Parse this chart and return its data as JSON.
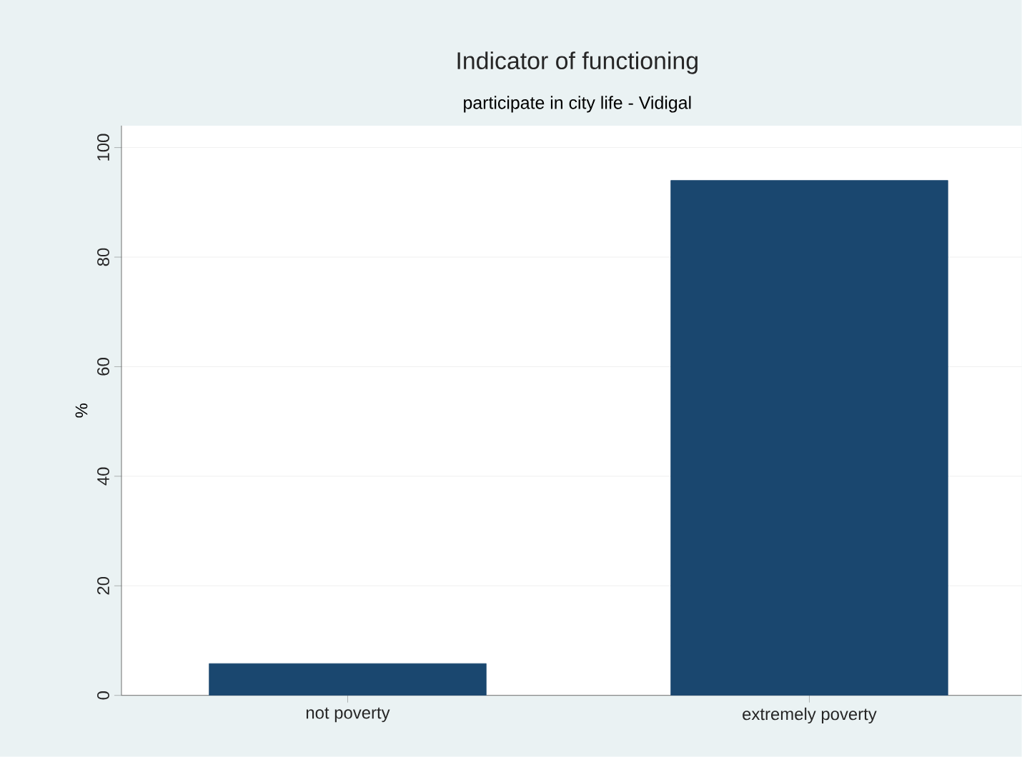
{
  "chart_data": {
    "type": "bar",
    "title": "Indicator of functioning",
    "subtitle": "participate in city life - Vidigal",
    "ylabel": "%",
    "categories": [
      "not poverty",
      "extremely poverty"
    ],
    "values": [
      5.8,
      94.0
    ],
    "color": "#1a476f",
    "ylim": [
      0,
      104
    ],
    "yticks": [
      0,
      20,
      40,
      60,
      80,
      100
    ],
    "grid": "y"
  }
}
